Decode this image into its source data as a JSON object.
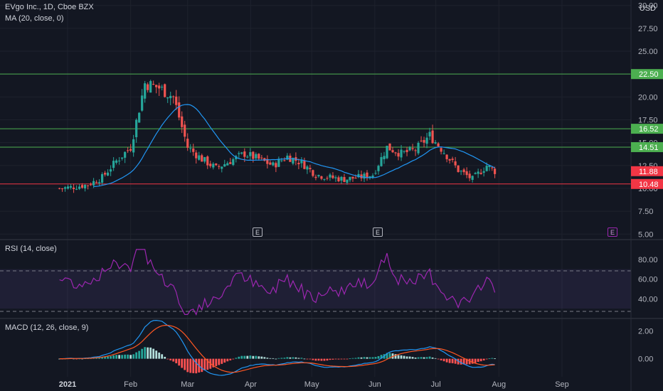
{
  "header": {
    "title": "EVgo Inc., 1D, Cboe BZX",
    "ma_legend": "MA (20, close, 0)",
    "currency": "USD"
  },
  "panes": {
    "rsi_legend": "RSI (14, close)",
    "macd_legend": "MACD (12, 26, close, 9)"
  },
  "earnings_markers": [
    {
      "label": "E",
      "date": "Mar 2021",
      "future": false
    },
    {
      "label": "E",
      "date": "May 2021",
      "future": false
    },
    {
      "label": "E",
      "date": "Sep 2021",
      "future": true
    }
  ],
  "colors": {
    "background": "#131722",
    "up": "#26a69a",
    "down": "#ef5350",
    "ma": "#2196f3",
    "rsi": "#9c27b0",
    "macd": "#2196f3",
    "signal": "#ff5722",
    "level_green": "#4caf50",
    "level_red": "#f23645"
  },
  "chart_data": [
    {
      "type": "candlestick",
      "title": "EVgo Inc., 1D, Cboe BZX",
      "x_tick_labels": [
        "2021",
        "Feb",
        "Mar",
        "Apr",
        "May",
        "Jun",
        "Jul",
        "Aug",
        "Sep"
      ],
      "y_tick_labels": [
        "5.00",
        "7.50",
        "10.00",
        "12.50",
        "15.00",
        "17.50",
        "20.00",
        "22.50",
        "25.00",
        "27.50",
        "30.00"
      ],
      "ylim": [
        4.4,
        30.6
      ],
      "price_levels": [
        {
          "label": "22.50",
          "value": 22.5,
          "color": "#4caf50"
        },
        {
          "label": "16.52",
          "value": 16.52,
          "color": "#4caf50"
        },
        {
          "label": "14.51",
          "value": 14.51,
          "color": "#4caf50"
        },
        {
          "label": "11.88",
          "value": 11.88,
          "color": "#f23645"
        },
        {
          "label": "10.48",
          "value": 10.48,
          "color": "#f23645"
        }
      ],
      "close_series": [
        {
          "date": "2020-12-28",
          "close": 10.0
        },
        {
          "date": "2021-01-04",
          "close": 10.15
        },
        {
          "date": "2021-01-11",
          "close": 10.4
        },
        {
          "date": "2021-01-18",
          "close": 11.2
        },
        {
          "date": "2021-01-25",
          "close": 13.0
        },
        {
          "date": "2021-02-01",
          "close": 14.5
        },
        {
          "date": "2021-02-08",
          "close": 21.5
        },
        {
          "date": "2021-02-15",
          "close": 21.0
        },
        {
          "date": "2021-02-22",
          "close": 20.0
        },
        {
          "date": "2021-03-01",
          "close": 14.5
        },
        {
          "date": "2021-03-08",
          "close": 13.2
        },
        {
          "date": "2021-03-15",
          "close": 12.2
        },
        {
          "date": "2021-03-22",
          "close": 13.0
        },
        {
          "date": "2021-03-29",
          "close": 13.8
        },
        {
          "date": "2021-04-05",
          "close": 13.2
        },
        {
          "date": "2021-04-12",
          "close": 12.5
        },
        {
          "date": "2021-04-19",
          "close": 13.5
        },
        {
          "date": "2021-04-26",
          "close": 12.8
        },
        {
          "date": "2021-05-03",
          "close": 11.5
        },
        {
          "date": "2021-05-10",
          "close": 11.2
        },
        {
          "date": "2021-05-17",
          "close": 11.0
        },
        {
          "date": "2021-05-24",
          "close": 11.2
        },
        {
          "date": "2021-05-31",
          "close": 11.5
        },
        {
          "date": "2021-06-07",
          "close": 14.5
        },
        {
          "date": "2021-06-14",
          "close": 13.8
        },
        {
          "date": "2021-06-21",
          "close": 14.2
        },
        {
          "date": "2021-06-28",
          "close": 15.8
        },
        {
          "date": "2021-07-05",
          "close": 14.0
        },
        {
          "date": "2021-07-12",
          "close": 12.0
        },
        {
          "date": "2021-07-19",
          "close": 11.0
        },
        {
          "date": "2021-07-26",
          "close": 12.5
        },
        {
          "date": "2021-07-30",
          "close": 11.88
        }
      ]
    },
    {
      "type": "line",
      "title": "RSI (14, close)",
      "y_tick_labels": [
        "40.00",
        "60.00",
        "80.00"
      ],
      "ylim": [
        20,
        100
      ],
      "band": [
        30,
        70
      ]
    },
    {
      "type": "bar",
      "title": "MACD (12, 26, close, 9)",
      "y_tick_labels": [
        "0.00",
        "2.00"
      ],
      "ylim": [
        -1.3,
        2.9
      ]
    }
  ]
}
